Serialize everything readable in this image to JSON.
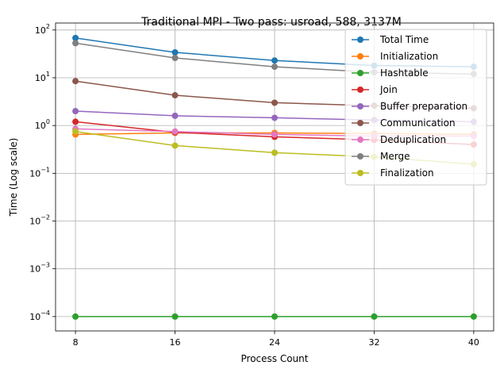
{
  "chart_data": {
    "type": "line",
    "title": "Traditional MPI - Two pass: usroad, 588, 3137M",
    "xlabel": "Process Count",
    "ylabel": "Time (Log scale)",
    "x": [
      8,
      16,
      24,
      32,
      40
    ],
    "x_tick_labels": [
      "8",
      "16",
      "24",
      "32",
      "40"
    ],
    "yscale": "log",
    "ylim": [
      5e-05,
      140
    ],
    "y_ticks": [
      0.0001,
      0.001,
      0.01,
      0.1,
      1,
      10,
      100
    ],
    "grid": true,
    "legend_position": "top-right",
    "series": [
      {
        "name": "Total Time",
        "color": "#1f77b4",
        "values": [
          68,
          34,
          23,
          18,
          17
        ]
      },
      {
        "name": "Initialization",
        "color": "#ff7f0e",
        "values": [
          0.65,
          0.7,
          0.7,
          0.68,
          0.65
        ]
      },
      {
        "name": "Hashtable",
        "color": "#2ca02c",
        "values": [
          0.0001,
          0.0001,
          0.0001,
          0.0001,
          0.0001
        ]
      },
      {
        "name": "Join",
        "color": "#d62728",
        "values": [
          1.2,
          0.72,
          0.58,
          0.5,
          0.4
        ]
      },
      {
        "name": "Buffer preparation",
        "color": "#9467bd",
        "values": [
          2.0,
          1.6,
          1.45,
          1.3,
          1.2
        ]
      },
      {
        "name": "Communication",
        "color": "#8c564b",
        "values": [
          8.5,
          4.3,
          3.0,
          2.6,
          2.3
        ]
      },
      {
        "name": "Deduplication",
        "color": "#e377c2",
        "values": [
          0.85,
          0.75,
          0.65,
          0.6,
          0.6
        ]
      },
      {
        "name": "Merge",
        "color": "#7f7f7f",
        "values": [
          53,
          26,
          17,
          13,
          12
        ]
      },
      {
        "name": "Finalization",
        "color": "#bcbd22",
        "values": [
          0.75,
          0.38,
          0.27,
          0.22,
          0.155
        ]
      }
    ]
  }
}
